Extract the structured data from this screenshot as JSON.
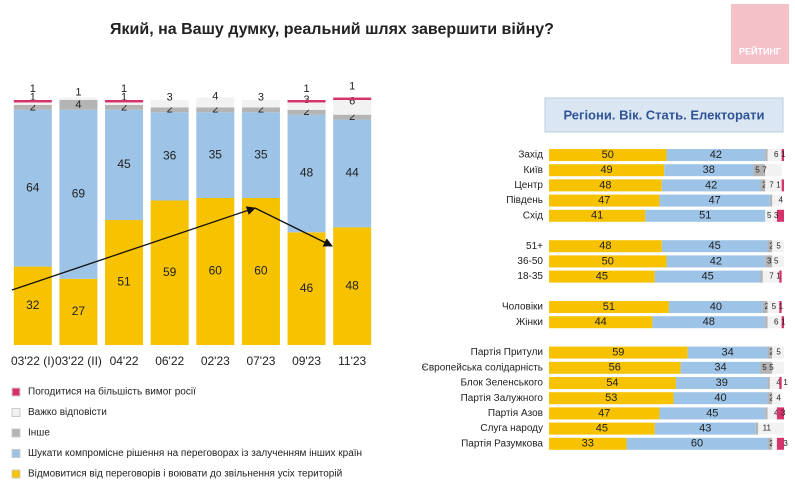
{
  "header": {
    "title": "Який, на Вашу думку, реальний шлях завершити війну?",
    "logo": "РЕЙТИНГ"
  },
  "chart_data": [
    {
      "type": "stacked-bar",
      "categories": [
        "03'22 (I)",
        "03'22 (II)",
        "04'22",
        "06'22",
        "02'23",
        "07'23",
        "09'23",
        "11'23"
      ],
      "ylim": [
        0,
        100
      ],
      "series": [
        {
          "name": "Відмовитися від переговорів і воювати до звільнення усіх територій",
          "color": "#f7c200",
          "values": [
            32,
            27,
            51,
            59,
            60,
            60,
            46,
            48
          ]
        },
        {
          "name": "Шукати компромісне рішення на переговорах із залученням інших країн",
          "color": "#9dc3e6",
          "values": [
            64,
            69,
            45,
            36,
            35,
            35,
            48,
            44
          ]
        },
        {
          "name": "Інше",
          "color": "#b4b4b4",
          "values": [
            2,
            4,
            2,
            2,
            2,
            2,
            2,
            2
          ]
        },
        {
          "name": "Важко відповісти",
          "color": "#f2f2f2",
          "values": [
            1,
            1,
            1,
            3,
            4,
            3,
            3,
            6
          ]
        },
        {
          "name": "Погодитися на більшість вимог росії",
          "color": "#d6336c",
          "values": [
            1,
            null,
            1,
            null,
            null,
            null,
            1,
            1
          ]
        }
      ]
    },
    {
      "type": "stacked-barh",
      "title": "Регіони. Вік. Стать. Електорати",
      "categories": [
        "Захід",
        "Київ",
        "Центр",
        "Південь",
        "Схід",
        null,
        "51+",
        "36-50",
        "18-35",
        null,
        "Чоловіки",
        "Жінки",
        null,
        "Партія Притули",
        "Європейська солідарність",
        "Блок Зеленського",
        "Партія Залужного",
        "Партія Азов",
        "Слуга народу",
        "Партія  Разумкова"
      ],
      "xlim": [
        0,
        100
      ],
      "series": [
        {
          "color": "#f7c200",
          "values": [
            50,
            49,
            48,
            47,
            41,
            null,
            48,
            50,
            45,
            null,
            51,
            44,
            null,
            59,
            56,
            54,
            53,
            47,
            45,
            33
          ]
        },
        {
          "color": "#9dc3e6",
          "values": [
            42,
            38,
            42,
            47,
            51,
            null,
            45,
            42,
            45,
            null,
            40,
            48,
            null,
            34,
            34,
            39,
            40,
            45,
            43,
            60
          ]
        },
        {
          "color": "#b4b4b4",
          "values": [
            1,
            5,
            2,
            1,
            null,
            null,
            2,
            3,
            1,
            null,
            2,
            1,
            null,
            2,
            5,
            1,
            2,
            1,
            1,
            2
          ]
        },
        {
          "color": "#f2f2f2",
          "values": [
            6,
            7,
            7,
            4,
            5,
            null,
            5,
            5,
            7,
            null,
            5,
            6,
            null,
            5,
            5,
            4,
            4,
            4,
            11,
            2
          ]
        },
        {
          "color": "#d6336c",
          "values": [
            1,
            null,
            1,
            null,
            3,
            null,
            null,
            null,
            1,
            null,
            1,
            1,
            null,
            null,
            null,
            1,
            null,
            3,
            null,
            3
          ]
        }
      ]
    }
  ]
}
